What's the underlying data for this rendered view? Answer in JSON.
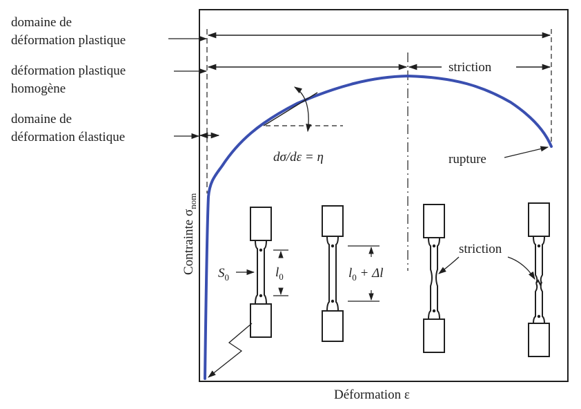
{
  "labels": {
    "plastic_domain_line1": "domaine de",
    "plastic_domain_line2": "déformation plastique",
    "homogeneous_line1": "déformation plastique",
    "homogeneous_line2": "homogène",
    "elastic_line1": "domaine de",
    "elastic_line2": "déformation élastique",
    "necking_top": "striction",
    "rupture": "rupture",
    "slope": "dσ/dε = η",
    "necking_specimens": "striction",
    "x_axis": "Déformation ε",
    "y_axis_main": "Contrainte σ",
    "y_axis_sub": "nom",
    "s0_main": "S",
    "s0_sub": "0",
    "l0_main": "l",
    "l0_sub": "0",
    "l0dl_main": "l",
    "l0dl_sub": "0",
    "l0dl_rest": " + Δl"
  },
  "colors": {
    "curve": "#3a4fb0",
    "ink": "#1f1f1f"
  }
}
